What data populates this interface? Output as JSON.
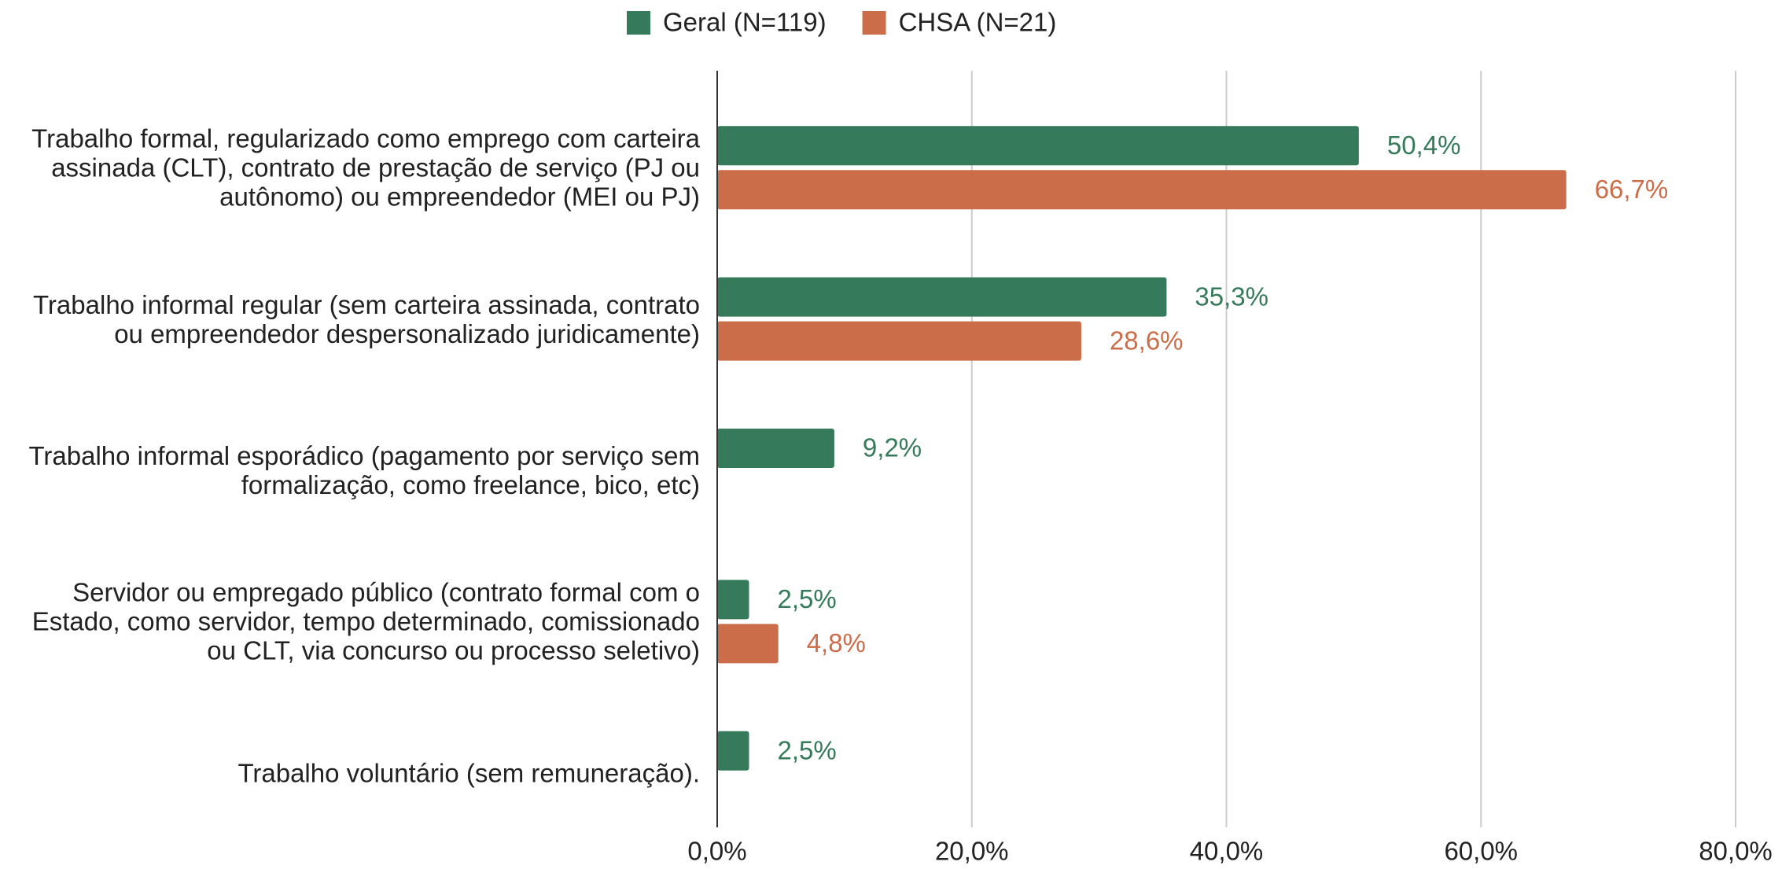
{
  "chart_data": {
    "type": "bar",
    "orientation": "horizontal",
    "categories": [
      "Trabalho formal, regularizado como emprego com carteira assinada (CLT), contrato de prestação de serviço (PJ ou autônomo) ou empreendedor (MEI ou PJ)",
      "Trabalho informal regular (sem carteira assinada, contrato ou empreendedor despersonalizado juridicamente)",
      "Trabalho informal esporádico (pagamento por serviço sem formalização, como freelance, bico, etc)",
      "Servidor ou empregado público (contrato formal com o Estado, como servidor, tempo determinado, comissionado ou CLT, via concurso ou processo seletivo)",
      "Trabalho voluntário (sem remuneração)."
    ],
    "series": [
      {
        "name": "Geral (N=119)",
        "color": "#357a5b",
        "values": [
          50.4,
          35.3,
          9.2,
          2.5,
          2.5
        ],
        "value_labels": [
          "50,4%",
          "35,3%",
          "9,2%",
          "2,5%",
          "2,5%"
        ]
      },
      {
        "name": "CHSA (N=21)",
        "color": "#cc6d49",
        "values": [
          66.7,
          28.6,
          null,
          4.8,
          null
        ],
        "value_labels": [
          "66,7%",
          "28,6%",
          null,
          "4,8%",
          null
        ]
      }
    ],
    "xlim": [
      0,
      80
    ],
    "xticks": [
      {
        "value": 0,
        "label": "0,0%"
      },
      {
        "value": 20,
        "label": "20,0%"
      },
      {
        "value": 40,
        "label": "40,0%"
      },
      {
        "value": 60,
        "label": "60,0%"
      },
      {
        "value": 80,
        "label": "80,0%"
      }
    ],
    "grid": true,
    "legend": "top"
  }
}
